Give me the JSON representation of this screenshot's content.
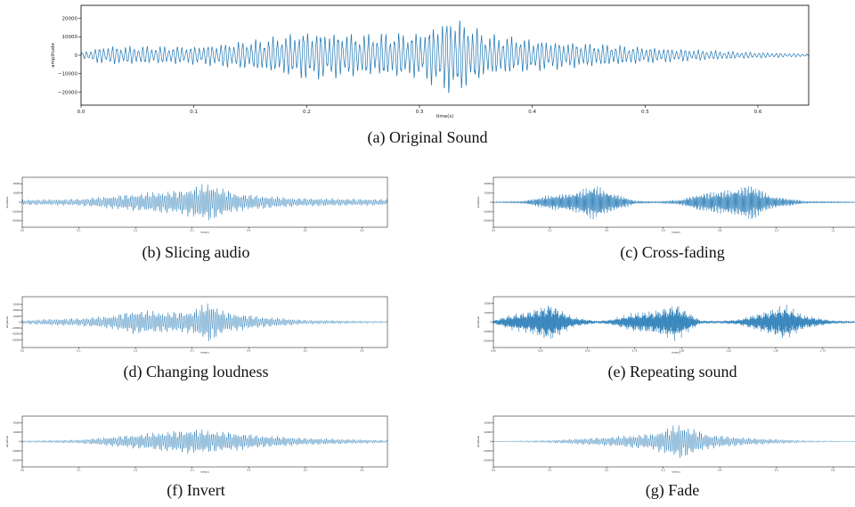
{
  "figure": {
    "panels": [
      {
        "id": "a",
        "caption": "(a) Original Sound"
      },
      {
        "id": "b",
        "caption": "(b) Slicing audio"
      },
      {
        "id": "c",
        "caption": "(c) Cross-fading"
      },
      {
        "id": "d",
        "caption": "(d) Changing loudness"
      },
      {
        "id": "e",
        "caption": "(e) Repeating sound"
      },
      {
        "id": "f",
        "caption": "(f) Invert"
      },
      {
        "id": "g",
        "caption": "(g) Fade"
      }
    ]
  },
  "colors": {
    "waveform": "#1f77b4",
    "axis": "#000000"
  },
  "chart_data": [
    {
      "type": "line",
      "panel": "a",
      "xlabel": "time(s)",
      "ylabel": "amplitude",
      "xlim": [
        0,
        0.645
      ],
      "ylim": [
        -27000,
        27000
      ],
      "xticks": [
        0.0,
        0.1,
        0.2,
        0.3,
        0.4,
        0.5,
        0.6
      ],
      "xtick_labels": [
        "0.0",
        "0.1",
        "0.2",
        "0.3",
        "0.4",
        "0.5",
        "0.6"
      ],
      "yticks": [
        -20000,
        -10000,
        0,
        10000,
        20000
      ],
      "ytick_labels": [
        "−20000",
        "−10000",
        "0",
        "10000",
        "20000"
      ],
      "envelope": {
        "x": [
          0.0,
          0.02,
          0.1,
          0.16,
          0.2,
          0.25,
          0.3,
          0.33,
          0.36,
          0.42,
          0.5,
          0.58,
          0.645
        ],
        "y": [
          1500,
          5000,
          5000,
          9000,
          14000,
          12000,
          13000,
          23000,
          12000,
          8000,
          4500,
          2000,
          800
        ]
      }
    },
    {
      "type": "line",
      "panel": "b",
      "xlabel": "time(s)",
      "ylabel": "amplitude",
      "xlim": [
        0,
        0.645
      ],
      "ylim": [
        -27000,
        27000
      ],
      "xticks": [
        0.0,
        0.1,
        0.2,
        0.3,
        0.4,
        0.5,
        0.6
      ],
      "xtick_labels": [
        "0.0",
        "0.1",
        "0.2",
        "0.3",
        "0.4",
        "0.5",
        "0.6"
      ],
      "yticks": [
        -20000,
        -10000,
        0,
        10000,
        20000
      ],
      "ytick_labels": [
        "−20000",
        "−10000",
        "0",
        "10000",
        "20000"
      ],
      "envelope": {
        "x": [
          0.0,
          0.1,
          0.2,
          0.28,
          0.33,
          0.38,
          0.48,
          0.645
        ],
        "y": [
          3000,
          4000,
          10000,
          14000,
          22000,
          10000,
          5000,
          3500
        ]
      }
    },
    {
      "type": "line",
      "panel": "c",
      "xlabel": "time(s)",
      "ylabel": "amplitude",
      "xlim": [
        0,
        1.29
      ],
      "ylim": [
        -27000,
        27000
      ],
      "xticks": [
        0.0,
        0.2,
        0.4,
        0.6,
        0.8,
        1.0,
        1.2
      ],
      "xtick_labels": [
        "0.0",
        "0.2",
        "0.4",
        "0.6",
        "0.8",
        "1.0",
        "1.2"
      ],
      "yticks": [
        -20000,
        -10000,
        0,
        10000,
        20000
      ],
      "ytick_labels": [
        "−20000",
        "−10000",
        "0",
        "10000",
        "20000"
      ],
      "envelope": {
        "x": [
          0.0,
          0.1,
          0.2,
          0.3,
          0.36,
          0.44,
          0.5,
          0.58,
          0.66,
          0.72,
          0.8,
          0.91,
          0.98,
          1.1,
          1.29
        ],
        "y": [
          800,
          1500,
          8000,
          13000,
          20000,
          9000,
          2000,
          1200,
          3000,
          10000,
          13000,
          21000,
          8000,
          1500,
          800
        ]
      }
    },
    {
      "type": "line",
      "panel": "d",
      "xlabel": "time(s)",
      "ylabel": "amplitude",
      "xlim": [
        0,
        0.645
      ],
      "ylim": [
        -43000,
        43000
      ],
      "xticks": [
        0.0,
        0.1,
        0.2,
        0.3,
        0.4,
        0.5,
        0.6
      ],
      "xtick_labels": [
        "0.0",
        "0.1",
        "0.2",
        "0.3",
        "0.4",
        "0.5",
        "0.6"
      ],
      "yticks": [
        -30000,
        -20000,
        -10000,
        0,
        10000,
        20000,
        30000
      ],
      "ytick_labels": [
        "−30000",
        "−20000",
        "−10000",
        "0",
        "10000",
        "20000",
        "30000"
      ],
      "envelope": {
        "x": [
          0.0,
          0.05,
          0.1,
          0.16,
          0.2,
          0.25,
          0.3,
          0.33,
          0.36,
          0.42,
          0.5,
          0.645
        ],
        "y": [
          3000,
          6000,
          7000,
          12000,
          22000,
          18000,
          20000,
          37000,
          18000,
          10000,
          4000,
          1500
        ]
      }
    },
    {
      "type": "line",
      "panel": "e",
      "xlabel": "time(s)",
      "ylabel": "amplitude",
      "xlim": [
        0,
        1.94
      ],
      "ylim": [
        -27000,
        27000
      ],
      "xticks": [
        0.0,
        0.25,
        0.5,
        0.75,
        1.0,
        1.25,
        1.5,
        1.75
      ],
      "xtick_labels": [
        "0.00",
        "0.25",
        "0.50",
        "0.75",
        "1.00",
        "1.25",
        "1.50",
        "1.75"
      ],
      "yticks": [
        -20000,
        -10000,
        0,
        10000,
        20000
      ],
      "ytick_labels": [
        "−20000",
        "−10000",
        "0",
        "10000",
        "20000"
      ],
      "envelope": {
        "x": [
          0.0,
          0.08,
          0.18,
          0.3,
          0.42,
          0.55,
          0.62,
          0.75,
          0.85,
          0.97,
          1.1,
          1.2,
          1.3,
          1.42,
          1.55,
          1.65,
          1.8,
          1.94
        ],
        "y": [
          2000,
          8000,
          12000,
          22000,
          6000,
          1500,
          3000,
          11000,
          13000,
          21000,
          2000,
          1500,
          3000,
          11000,
          20000,
          8000,
          2000,
          1000
        ]
      }
    },
    {
      "type": "line",
      "panel": "f",
      "xlabel": "time(s)",
      "ylabel": "amplitude",
      "xlim": [
        0,
        0.645
      ],
      "ylim": [
        -27000,
        27000
      ],
      "xticks": [
        0.0,
        0.1,
        0.2,
        0.3,
        0.4,
        0.5,
        0.6
      ],
      "xtick_labels": [
        "0.0",
        "0.1",
        "0.2",
        "0.3",
        "0.4",
        "0.5",
        "0.6"
      ],
      "yticks": [
        -20000,
        -10000,
        0,
        10000,
        20000
      ],
      "ytick_labels": [
        "−20000",
        "−10000",
        "0",
        "10000",
        "20000"
      ],
      "envelope": {
        "x": [
          0.0,
          0.1,
          0.2,
          0.25,
          0.3,
          0.36,
          0.42,
          0.5,
          0.645
        ],
        "y": [
          1000,
          2000,
          8000,
          11000,
          14000,
          11000,
          7000,
          4000,
          1500
        ]
      }
    },
    {
      "type": "line",
      "panel": "g",
      "xlabel": "time(s)",
      "ylabel": "amplitude",
      "xlim": [
        0,
        0.645
      ],
      "ylim": [
        -27000,
        27000
      ],
      "xticks": [
        0.0,
        0.1,
        0.2,
        0.3,
        0.4,
        0.5,
        0.6
      ],
      "xtick_labels": [
        "0.0",
        "0.1",
        "0.2",
        "0.3",
        "0.4",
        "0.5",
        "0.6"
      ],
      "yticks": [
        -20000,
        -10000,
        0,
        10000,
        20000
      ],
      "ytick_labels": [
        "−20000",
        "−10000",
        "0",
        "10000",
        "20000"
      ],
      "envelope": {
        "x": [
          0.0,
          0.1,
          0.2,
          0.28,
          0.33,
          0.38,
          0.45,
          0.55,
          0.645
        ],
        "y": [
          300,
          1500,
          5000,
          9000,
          20000,
          8000,
          4000,
          1200,
          300
        ]
      }
    }
  ]
}
